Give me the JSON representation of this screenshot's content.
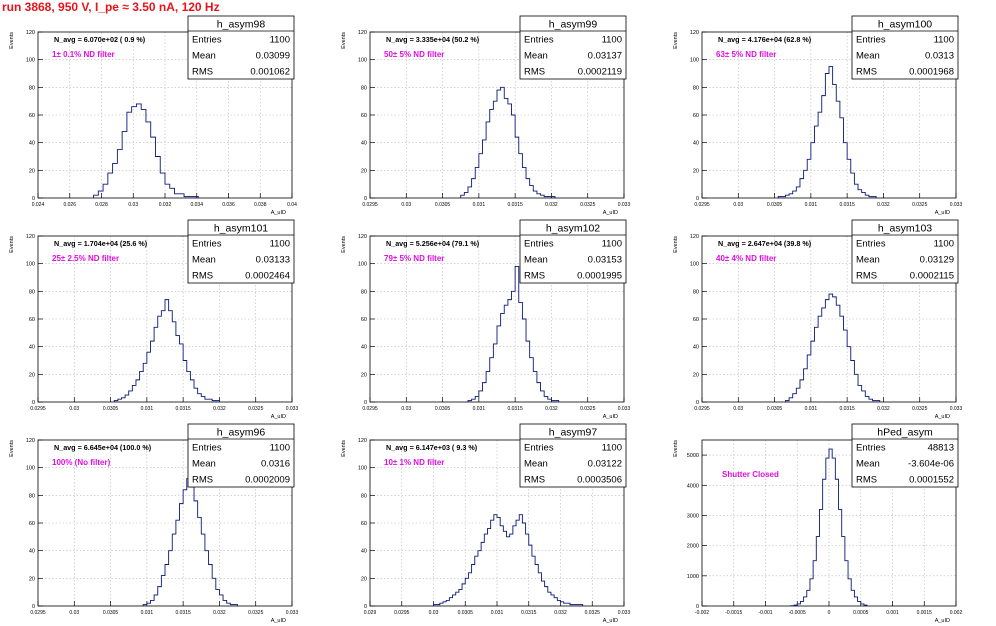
{
  "page": {
    "run_title": "run 3868,   950 V, I_pe ≈ 3.50 nA, 120 Hz"
  },
  "chart_data": [
    {
      "type": "histogram",
      "name": "h_asym98",
      "stats": {
        "entries_label": "Entries",
        "entries": "1100",
        "mean_label": "Mean",
        "mean": "0.03099",
        "rms_label": "RMS",
        "rms": "0.001062"
      },
      "navg_text": "N_avg = 6.070e+02 ( 0.9 %)",
      "filter_text": "1± 0.1% ND filter",
      "ylabel": "Events",
      "xlabel": "A_uID",
      "xlim": [
        0.024,
        0.04
      ],
      "ylim": [
        0,
        120
      ],
      "xticks": [
        0.024,
        0.026,
        0.028,
        0.03,
        0.032,
        0.034,
        0.036,
        0.038,
        0.04
      ],
      "xtick_labels": [
        "0.024",
        "0.026",
        "0.028",
        "0.03",
        "0.032",
        "0.034",
        "0.036",
        "0.038",
        "0.04"
      ],
      "yticks": [
        0,
        20,
        40,
        60,
        80,
        100,
        120
      ],
      "ytick_labels": [
        "0",
        "20",
        "40",
        "60",
        "80",
        "100",
        "120"
      ],
      "bin_edges": [
        0.0275,
        0.0278,
        0.0281,
        0.0284,
        0.0287,
        0.029,
        0.0293,
        0.0296,
        0.0299,
        0.0302,
        0.0305,
        0.0308,
        0.0311,
        0.0314,
        0.0317,
        0.032,
        0.0323,
        0.0326,
        0.0329,
        0.0332,
        0.0335,
        0.0338,
        0.0341
      ],
      "counts": [
        2,
        5,
        10,
        18,
        25,
        35,
        48,
        62,
        66,
        68,
        64,
        55,
        44,
        30,
        18,
        10,
        7,
        3,
        3,
        1,
        1,
        1
      ]
    },
    {
      "type": "histogram",
      "name": "h_asym99",
      "stats": {
        "entries_label": "Entries",
        "entries": "1100",
        "mean_label": "Mean",
        "mean": "0.03137",
        "rms_label": "RMS",
        "rms": "0.0002119"
      },
      "navg_text": "N_avg = 3.335e+04 (50.2 %)",
      "filter_text": "50± 5% ND filter",
      "ylabel": "Events",
      "xlabel": "A_uID",
      "xlim": [
        0.0295,
        0.033
      ],
      "ylim": [
        0,
        120
      ],
      "xticks": [
        0.0295,
        0.03,
        0.0305,
        0.031,
        0.0315,
        0.032,
        0.0325,
        0.033
      ],
      "xtick_labels": [
        "0.0295",
        "0.03",
        "0.0305",
        "0.031",
        "0.0315",
        "0.032",
        "0.0325",
        "0.033"
      ],
      "yticks": [
        0,
        20,
        40,
        60,
        80,
        100,
        120
      ],
      "ytick_labels": [
        "0",
        "20",
        "40",
        "60",
        "80",
        "100",
        "120"
      ],
      "bin_edges": [
        0.03075,
        0.0308,
        0.03085,
        0.0309,
        0.03095,
        0.031,
        0.03105,
        0.0311,
        0.03115,
        0.0312,
        0.03125,
        0.0313,
        0.03135,
        0.0314,
        0.03145,
        0.0315,
        0.03155,
        0.0316,
        0.03165,
        0.0317,
        0.03175,
        0.0318,
        0.03185,
        0.0319,
        0.03195,
        0.032,
        0.03205
      ],
      "counts": [
        2,
        4,
        8,
        14,
        22,
        32,
        42,
        55,
        64,
        70,
        78,
        80,
        72,
        68,
        60,
        44,
        32,
        22,
        14,
        9,
        5,
        3,
        2,
        1,
        1,
        1
      ]
    },
    {
      "type": "histogram",
      "name": "h_asym100",
      "stats": {
        "entries_label": "Entries",
        "entries": "1100",
        "mean_label": "Mean",
        "mean": "0.0313",
        "rms_label": "RMS",
        "rms": "0.0001968"
      },
      "navg_text": "N_avg = 4.176e+04 (62.8 %)",
      "filter_text": "63± 5% ND filter",
      "ylabel": "Events",
      "xlabel": "A_uID",
      "xlim": [
        0.0295,
        0.033
      ],
      "ylim": [
        0,
        120
      ],
      "xticks": [
        0.0295,
        0.03,
        0.0305,
        0.031,
        0.0315,
        0.032,
        0.0325,
        0.033
      ],
      "xtick_labels": [
        "0.0295",
        "0.03",
        "0.0305",
        "0.031",
        "0.0315",
        "0.032",
        "0.0325",
        "0.033"
      ],
      "yticks": [
        0,
        20,
        40,
        60,
        80,
        100,
        120
      ],
      "ytick_labels": [
        "0",
        "20",
        "40",
        "60",
        "80",
        "100",
        "120"
      ],
      "bin_edges": [
        0.03055,
        0.0306,
        0.03065,
        0.0307,
        0.03075,
        0.0308,
        0.03085,
        0.0309,
        0.03095,
        0.031,
        0.03105,
        0.0311,
        0.03115,
        0.0312,
        0.03125,
        0.0313,
        0.03135,
        0.0314,
        0.03145,
        0.0315,
        0.03155,
        0.0316,
        0.03165,
        0.0317,
        0.03175,
        0.0318,
        0.03185,
        0.0319
      ],
      "counts": [
        1,
        1,
        2,
        3,
        5,
        8,
        14,
        20,
        28,
        40,
        52,
        62,
        74,
        90,
        95,
        82,
        70,
        58,
        40,
        28,
        18,
        10,
        6,
        4,
        2,
        1,
        1
      ]
    },
    {
      "type": "histogram",
      "name": "h_asym101",
      "stats": {
        "entries_label": "Entries",
        "entries": "1100",
        "mean_label": "Mean",
        "mean": "0.03133",
        "rms_label": "RMS",
        "rms": "0.0002464"
      },
      "navg_text": "N_avg = 1.704e+04 (25.6 %)",
      "filter_text": "25± 2.5% ND filter",
      "ylabel": "Events",
      "xlabel": "A_uID",
      "xlim": [
        0.0295,
        0.033
      ],
      "ylim": [
        0,
        120
      ],
      "xticks": [
        0.0295,
        0.03,
        0.0305,
        0.031,
        0.0315,
        0.032,
        0.0325,
        0.033
      ],
      "xtick_labels": [
        "0.0295",
        "0.03",
        "0.0305",
        "0.031",
        "0.0315",
        "0.032",
        "0.0325",
        "0.033"
      ],
      "yticks": [
        0,
        20,
        40,
        60,
        80,
        100,
        120
      ],
      "ytick_labels": [
        "0",
        "20",
        "40",
        "60",
        "80",
        "100",
        "120"
      ],
      "bin_edges": [
        0.03055,
        0.0306,
        0.03065,
        0.0307,
        0.03075,
        0.0308,
        0.03085,
        0.0309,
        0.03095,
        0.031,
        0.03105,
        0.0311,
        0.03115,
        0.0312,
        0.03125,
        0.0313,
        0.03135,
        0.0314,
        0.03145,
        0.0315,
        0.03155,
        0.0316,
        0.03165,
        0.0317,
        0.03175,
        0.0318,
        0.03185,
        0.0319,
        0.03195,
        0.032
      ],
      "counts": [
        1,
        2,
        3,
        5,
        8,
        12,
        16,
        22,
        28,
        36,
        44,
        54,
        62,
        66,
        74,
        66,
        58,
        48,
        42,
        30,
        22,
        16,
        10,
        6,
        4,
        2,
        2,
        1,
        1
      ]
    },
    {
      "type": "histogram",
      "name": "h_asym102",
      "stats": {
        "entries_label": "Entries",
        "entries": "1100",
        "mean_label": "Mean",
        "mean": "0.03153",
        "rms_label": "RMS",
        "rms": "0.0001995"
      },
      "navg_text": "N_avg = 5.256e+04 (79.1 %)",
      "filter_text": "79± 5% ND filter",
      "ylabel": "Events",
      "xlabel": "A_uID",
      "xlim": [
        0.0295,
        0.033
      ],
      "ylim": [
        0,
        120
      ],
      "xticks": [
        0.0295,
        0.03,
        0.0305,
        0.031,
        0.0315,
        0.032,
        0.0325,
        0.033
      ],
      "xtick_labels": [
        "0.0295",
        "0.03",
        "0.0305",
        "0.031",
        "0.0315",
        "0.032",
        "0.0325",
        "0.033"
      ],
      "yticks": [
        0,
        20,
        40,
        60,
        80,
        100,
        120
      ],
      "ytick_labels": [
        "0",
        "20",
        "40",
        "60",
        "80",
        "100",
        "120"
      ],
      "bin_edges": [
        0.03085,
        0.0309,
        0.03095,
        0.031,
        0.03105,
        0.0311,
        0.03115,
        0.0312,
        0.03125,
        0.0313,
        0.03135,
        0.0314,
        0.03145,
        0.0315,
        0.03155,
        0.0316,
        0.03165,
        0.0317,
        0.03175,
        0.0318,
        0.03185,
        0.0319,
        0.03195,
        0.032,
        0.03205,
        0.0321
      ],
      "counts": [
        1,
        2,
        4,
        8,
        14,
        22,
        32,
        42,
        55,
        64,
        70,
        74,
        80,
        98,
        72,
        60,
        44,
        32,
        22,
        14,
        8,
        4,
        2,
        1,
        1
      ]
    },
    {
      "type": "histogram",
      "name": "h_asym103",
      "stats": {
        "entries_label": "Entries",
        "entries": "1100",
        "mean_label": "Mean",
        "mean": "0.03129",
        "rms_label": "RMS",
        "rms": "0.0002115"
      },
      "navg_text": "N_avg = 2.647e+04 (39.8 %)",
      "filter_text": "40± 4% ND filter",
      "ylabel": "Events",
      "xlabel": "A_uID",
      "xlim": [
        0.0295,
        0.033
      ],
      "ylim": [
        0,
        120
      ],
      "xticks": [
        0.0295,
        0.03,
        0.0305,
        0.031,
        0.0315,
        0.032,
        0.0325,
        0.033
      ],
      "xtick_labels": [
        "0.0295",
        "0.03",
        "0.0305",
        "0.031",
        "0.0315",
        "0.032",
        "0.0325",
        "0.033"
      ],
      "yticks": [
        0,
        20,
        40,
        60,
        80,
        100,
        120
      ],
      "ytick_labels": [
        "0",
        "20",
        "40",
        "60",
        "80",
        "100",
        "120"
      ],
      "bin_edges": [
        0.03065,
        0.0307,
        0.03075,
        0.0308,
        0.03085,
        0.0309,
        0.03095,
        0.031,
        0.03105,
        0.0311,
        0.03115,
        0.0312,
        0.03125,
        0.0313,
        0.03135,
        0.0314,
        0.03145,
        0.0315,
        0.03155,
        0.0316,
        0.03165,
        0.0317,
        0.03175,
        0.0318,
        0.03185,
        0.0319,
        0.03195
      ],
      "counts": [
        1,
        3,
        6,
        10,
        16,
        24,
        34,
        44,
        54,
        62,
        68,
        74,
        78,
        76,
        70,
        62,
        52,
        40,
        30,
        20,
        12,
        8,
        4,
        2,
        1,
        1
      ]
    },
    {
      "type": "histogram",
      "name": "h_asym96",
      "stats": {
        "entries_label": "Entries",
        "entries": "1100",
        "mean_label": "Mean",
        "mean": "0.0316",
        "rms_label": "RMS",
        "rms": "0.0002009"
      },
      "navg_text": "N_avg = 6.645e+04 (100.0 %)",
      "filter_text": "100% (No filter)",
      "ylabel": "Events",
      "xlabel": "A_uID",
      "xlim": [
        0.0295,
        0.033
      ],
      "ylim": [
        0,
        120
      ],
      "xticks": [
        0.0295,
        0.03,
        0.0305,
        0.031,
        0.0315,
        0.032,
        0.0325,
        0.033
      ],
      "xtick_labels": [
        "0.0295",
        "0.03",
        "0.0305",
        "0.031",
        "0.0315",
        "0.032",
        "0.0325",
        "0.033"
      ],
      "yticks": [
        0,
        20,
        40,
        60,
        80,
        100,
        120
      ],
      "ytick_labels": [
        "0",
        "20",
        "40",
        "60",
        "80",
        "100",
        "120"
      ],
      "bin_edges": [
        0.03095,
        0.031,
        0.03105,
        0.0311,
        0.03115,
        0.0312,
        0.03125,
        0.0313,
        0.03135,
        0.0314,
        0.03145,
        0.0315,
        0.03155,
        0.0316,
        0.03165,
        0.0317,
        0.03175,
        0.0318,
        0.03185,
        0.0319,
        0.03195,
        0.032,
        0.03205,
        0.0321,
        0.03215,
        0.0322,
        0.03225
      ],
      "counts": [
        1,
        2,
        4,
        8,
        14,
        22,
        30,
        40,
        52,
        62,
        74,
        84,
        92,
        86,
        76,
        64,
        52,
        40,
        30,
        20,
        12,
        8,
        4,
        2,
        1,
        1
      ]
    },
    {
      "type": "histogram",
      "name": "h_asym97",
      "stats": {
        "entries_label": "Entries",
        "entries": "1100",
        "mean_label": "Mean",
        "mean": "0.03122",
        "rms_label": "RMS",
        "rms": "0.0003506"
      },
      "navg_text": "N_avg = 6.147e+03 ( 9.3 %)",
      "filter_text": "10± 1% ND filter",
      "ylabel": "Events",
      "xlabel": "A_uID",
      "xlim": [
        0.029,
        0.033
      ],
      "ylim": [
        0,
        120
      ],
      "xticks": [
        0.029,
        0.0295,
        0.03,
        0.0305,
        0.031,
        0.0315,
        0.032,
        0.0325,
        0.033
      ],
      "xtick_labels": [
        "0.029",
        "0.0295",
        "0.03",
        "0.0305",
        "0.031",
        "0.0315",
        "0.032",
        "0.0325",
        "0.033"
      ],
      "yticks": [
        0,
        20,
        40,
        60,
        80,
        100,
        120
      ],
      "ytick_labels": [
        "0",
        "20",
        "40",
        "60",
        "80",
        "100",
        "120"
      ],
      "bin_edges": [
        0.03,
        0.03005,
        0.0301,
        0.03015,
        0.0302,
        0.03025,
        0.0303,
        0.03035,
        0.0304,
        0.03045,
        0.0305,
        0.03055,
        0.0306,
        0.03065,
        0.0307,
        0.03075,
        0.0308,
        0.03085,
        0.0309,
        0.03095,
        0.031,
        0.03105,
        0.0311,
        0.03115,
        0.0312,
        0.03125,
        0.0313,
        0.03135,
        0.0314,
        0.03145,
        0.0315,
        0.03155,
        0.0316,
        0.03165,
        0.0317,
        0.03175,
        0.0318,
        0.03185,
        0.0319,
        0.03195,
        0.032,
        0.03205,
        0.0321,
        0.03215,
        0.0322,
        0.03225,
        0.0323,
        0.03235
      ],
      "counts": [
        1,
        1,
        2,
        3,
        4,
        6,
        8,
        10,
        12,
        16,
        20,
        24,
        30,
        36,
        40,
        46,
        52,
        56,
        62,
        66,
        64,
        58,
        54,
        50,
        52,
        58,
        62,
        66,
        60,
        52,
        44,
        36,
        30,
        24,
        18,
        14,
        10,
        8,
        6,
        4,
        3,
        2,
        2,
        1,
        1,
        1,
        1
      ]
    },
    {
      "type": "histogram",
      "name": "hPed_asym",
      "stats": {
        "entries_label": "Entries",
        "entries": "48813",
        "mean_label": "Mean",
        "mean": "-3.604e-06",
        "rms_label": "RMS",
        "rms": "0.0001552"
      },
      "navg_text": "",
      "filter_text": "Shutter Closed",
      "ylabel": "Events",
      "xlabel": "A_uID",
      "xlim": [
        -0.002,
        0.002
      ],
      "ylim": [
        0,
        5500
      ],
      "xticks": [
        -0.002,
        -0.0015,
        -0.001,
        -0.0005,
        0,
        0.0005,
        0.001,
        0.0015,
        0.002
      ],
      "xtick_labels": [
        "-0.002",
        "-0.0015",
        "-0.001",
        "-0.0005",
        "0",
        "0.0005",
        "0.001",
        "0.0015",
        "0.002"
      ],
      "yticks": [
        0,
        1000,
        2000,
        3000,
        4000,
        5000
      ],
      "ytick_labels": [
        "0",
        "1000",
        "2000",
        "3000",
        "4000",
        "5000"
      ],
      "bin_edges": [
        -0.0006,
        -0.00055,
        -0.0005,
        -0.00045,
        -0.0004,
        -0.00035,
        -0.0003,
        -0.00025,
        -0.0002,
        -0.00015,
        -0.0001,
        -5e-05,
        0,
        5e-05,
        0.0001,
        0.00015,
        0.0002,
        0.00025,
        0.0003,
        0.00035,
        0.0004,
        0.00045,
        0.0005,
        0.00055,
        0.0006
      ],
      "counts": [
        10,
        30,
        70,
        150,
        300,
        520,
        900,
        1500,
        2300,
        3200,
        4200,
        4900,
        5200,
        4900,
        4200,
        3200,
        2300,
        1500,
        900,
        520,
        300,
        150,
        70,
        30
      ]
    }
  ]
}
